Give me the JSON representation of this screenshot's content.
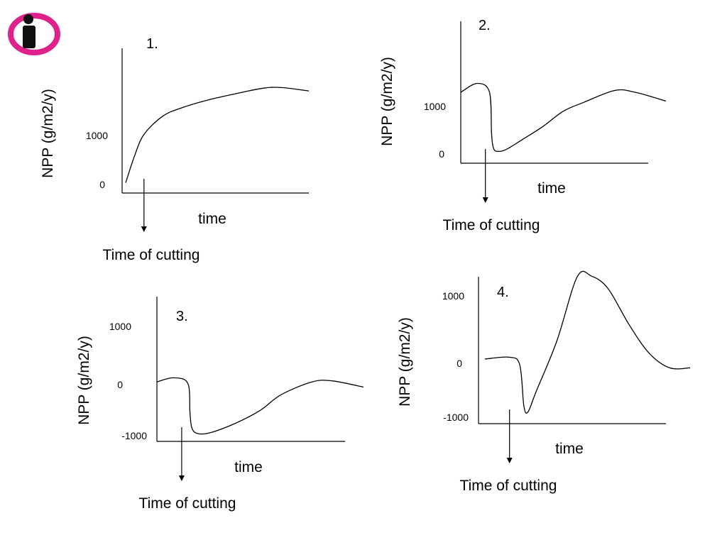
{
  "colors": {
    "logo_primary": "#e0218a",
    "logo_figure": "#111111",
    "ink": "#000000"
  },
  "logo": {
    "icon": "info-person-icon"
  },
  "chart_data": [
    {
      "type": "line",
      "panel_label": "1.",
      "ylabel": "NPP (g/m2/y)",
      "xlabel": "time",
      "y_ticks": [
        "1000",
        "0"
      ],
      "y_tick_values": [
        1000,
        0
      ],
      "ylim": [
        -150,
        1950
      ],
      "annotation": "Time of cutting",
      "cut_x": 0.1,
      "x": [
        0,
        0.05,
        0.1,
        0.2,
        0.3,
        0.45,
        0.6,
        0.75,
        0.85,
        1.0
      ],
      "y": [
        0,
        400,
        700,
        960,
        1080,
        1200,
        1290,
        1370,
        1380,
        1330
      ]
    },
    {
      "type": "line",
      "panel_label": "2.",
      "ylabel": "NPP (g/m2/y)",
      "xlabel": "time",
      "y_ticks": [
        "1000",
        "0"
      ],
      "y_tick_values": [
        1000,
        0
      ],
      "ylim": [
        -200,
        2200
      ],
      "annotation": "Time of cutting",
      "cut_x": 0.12,
      "x": [
        0,
        0.08,
        0.14,
        0.15,
        0.16,
        0.18,
        0.22,
        0.3,
        0.4,
        0.5,
        0.6,
        0.75,
        0.85,
        1.0
      ],
      "y": [
        1000,
        1150,
        1000,
        300,
        50,
        0,
        30,
        200,
        420,
        680,
        830,
        1030,
        1000,
        850
      ]
    },
    {
      "type": "line",
      "panel_label": "3.",
      "ylabel": "NPP (g/m2/y)",
      "xlabel": "time",
      "y_ticks": [
        "1000",
        "0",
        "-1000"
      ],
      "y_tick_values": [
        1000,
        0,
        -1000
      ],
      "ylim": [
        -1150,
        1650
      ],
      "annotation": "Time of cutting",
      "cut_x": 0.12,
      "x": [
        0,
        0.08,
        0.15,
        0.16,
        0.17,
        0.2,
        0.26,
        0.38,
        0.5,
        0.6,
        0.75,
        0.85,
        1.0
      ],
      "y": [
        0,
        80,
        -30,
        -600,
        -900,
        -1000,
        -980,
        -800,
        -550,
        -250,
        0,
        20,
        -100
      ]
    },
    {
      "type": "line",
      "panel_label": "4.",
      "ylabel": "NPP (g/m2/y)",
      "xlabel": "time",
      "y_ticks": [
        "1000",
        "0",
        "-1000"
      ],
      "y_tick_values": [
        1000,
        0,
        -1000
      ],
      "ylim": [
        -1100,
        1400
      ],
      "annotation": "Time of cutting",
      "cut_x": 0.12,
      "x": [
        0,
        0.12,
        0.17,
        0.19,
        0.21,
        0.25,
        0.35,
        0.45,
        0.52,
        0.6,
        0.7,
        0.8,
        0.9,
        1.0
      ],
      "y": [
        0,
        30,
        -100,
        -800,
        -900,
        -550,
        300,
        1400,
        1410,
        1200,
        600,
        100,
        -150,
        -150
      ]
    }
  ]
}
